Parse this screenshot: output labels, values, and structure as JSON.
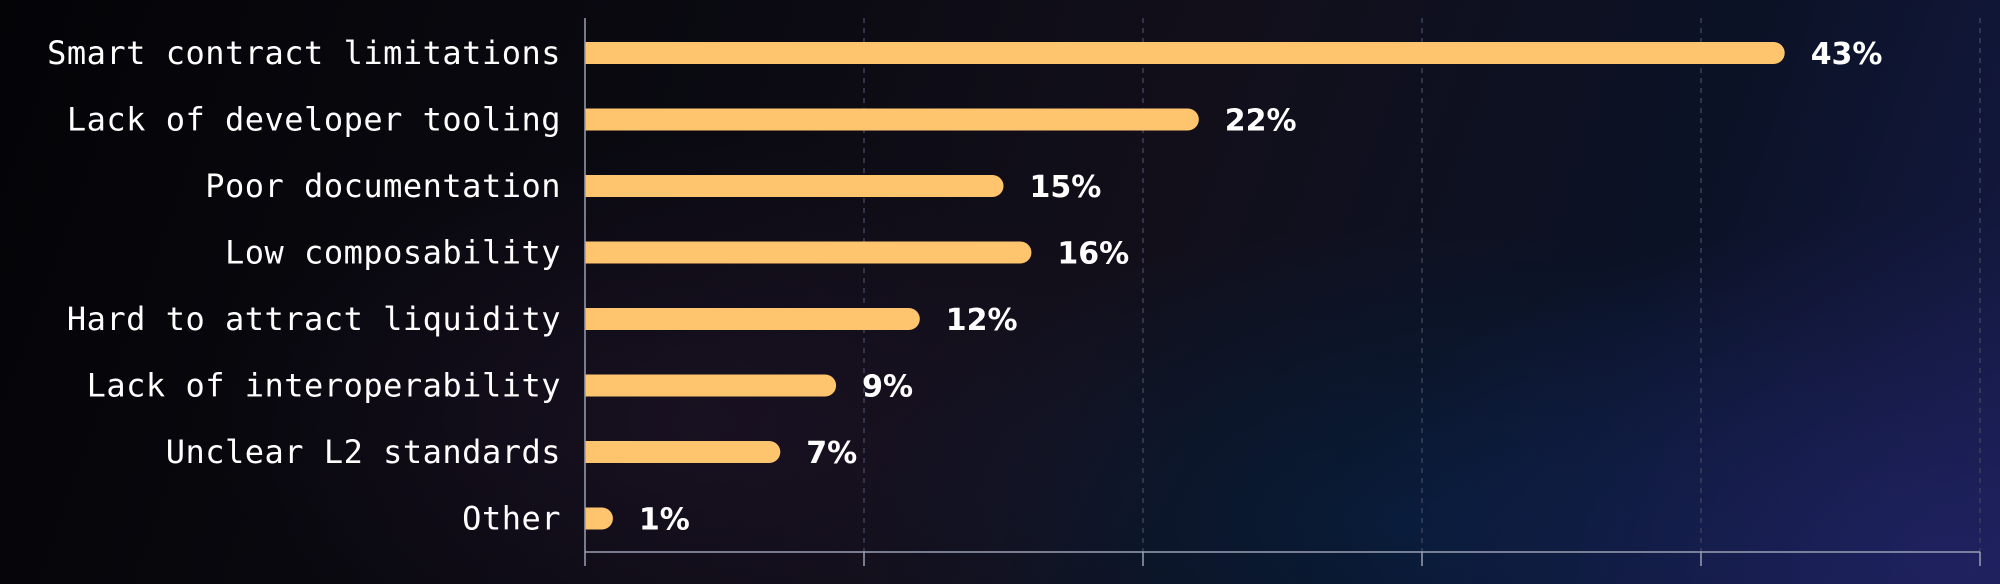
{
  "chart_data": {
    "type": "bar",
    "orientation": "horizontal",
    "categories": [
      "Smart contract limitations",
      "Lack of developer tooling",
      "Poor documentation",
      "Low composability",
      "Hard to attract liquidity",
      "Lack of interoperability",
      "Unclear L2 standards",
      "Other"
    ],
    "values": [
      43,
      22,
      15,
      16,
      12,
      9,
      7,
      1
    ],
    "value_labels": [
      "43%",
      "22%",
      "15%",
      "16%",
      "12%",
      "9%",
      "7%",
      "1%"
    ],
    "xlim": [
      0,
      50
    ],
    "grid": true,
    "title": "",
    "xlabel": "",
    "ylabel": "",
    "colors": {
      "bar": "#ffc56e",
      "text": "#ffffff",
      "axis": "#9aa0b4",
      "grid": "#3a4158"
    }
  }
}
